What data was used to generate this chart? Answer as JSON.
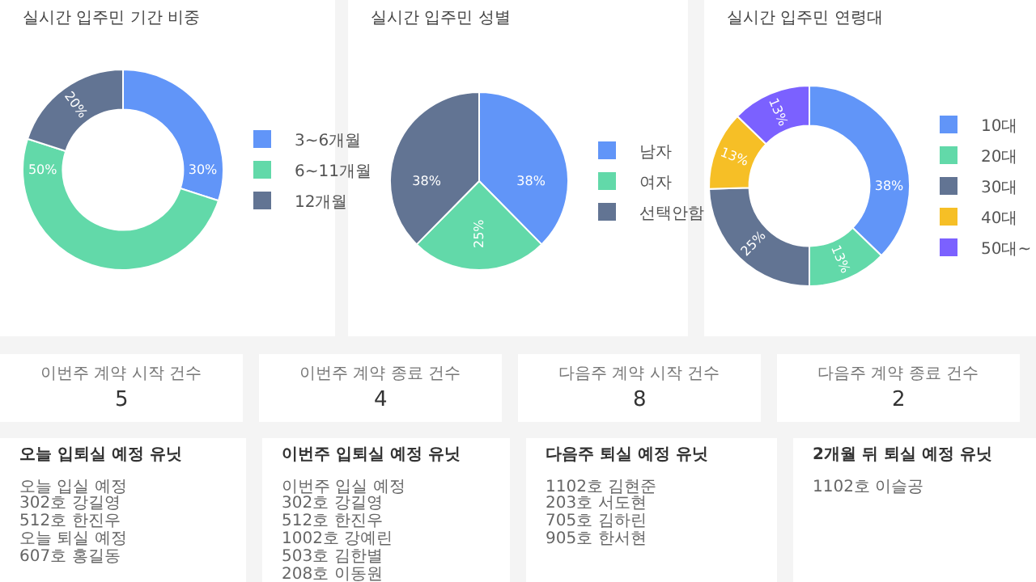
{
  "chart_data": [
    {
      "type": "donut",
      "title": "실시간 입주민 기간 비중",
      "categories": [
        "3~6개월",
        "6~11개월",
        "12개월"
      ],
      "values": [
        30,
        50,
        20
      ],
      "colors": [
        "#6195f8",
        "#62d9a9",
        "#627493"
      ],
      "value_labels": [
        "30%",
        "50%",
        "20%"
      ],
      "legend": "right"
    },
    {
      "type": "pie",
      "title": "실시간 입주민 성별",
      "categories": [
        "남자",
        "여자",
        "선택안함"
      ],
      "values": [
        38,
        25,
        38
      ],
      "colors": [
        "#6195f8",
        "#62d9a9",
        "#627493"
      ],
      "value_labels": [
        "38%",
        "25%",
        "38%"
      ],
      "legend": "right"
    },
    {
      "type": "donut",
      "title": "실시간 입주민 연령대",
      "categories": [
        "10대",
        "20대",
        "30대",
        "40대",
        "50대~"
      ],
      "values": [
        38,
        13,
        25,
        13,
        13
      ],
      "colors": [
        "#6195f8",
        "#62d9a9",
        "#627493",
        "#f6bf26",
        "#7b61ff"
      ],
      "value_labels": [
        "38%",
        "13%",
        "25%",
        "13%",
        "13%"
      ],
      "legend": "right"
    },
    {
      "type": "other",
      "title": "이번주 계약 시작 건수",
      "values": [
        5
      ],
      "data_labels": true
    },
    {
      "type": "other",
      "title": "이번주 계약 종료 건수",
      "values": [
        4
      ],
      "data_labels": true
    },
    {
      "type": "other",
      "title": "다음주 계약 시작 건수",
      "values": [
        8
      ],
      "data_labels": true
    },
    {
      "type": "other",
      "title": "다음주 계약 종료 건수",
      "values": [
        2
      ],
      "data_labels": true
    },
    {
      "type": "other",
      "title": "오늘 입퇴실 예정 유닛",
      "annotations": [
        "오늘 입실 예정",
        "302호 강길영",
        "512호 한진우",
        "오늘 퇴실 예정",
        "607호 홍길동"
      ]
    },
    {
      "type": "other",
      "title": "이번주 입퇴실 예정 유닛",
      "annotations": [
        "이번주 입실 예정",
        "302호 강길영",
        "512호 한진우",
        "1002호 강예린",
        "503호 김한별",
        "208호 이동원"
      ]
    },
    {
      "type": "other",
      "title": "다음주 퇴실 예정 유닛",
      "annotations": [
        "1102호 김현준",
        "203호 서도현",
        "705호 김하린",
        "905호 한서현"
      ]
    },
    {
      "type": "other",
      "title": "2개월 뒤 퇴실 예정 유닛",
      "annotations": [
        "1102호 이슬공"
      ]
    }
  ]
}
